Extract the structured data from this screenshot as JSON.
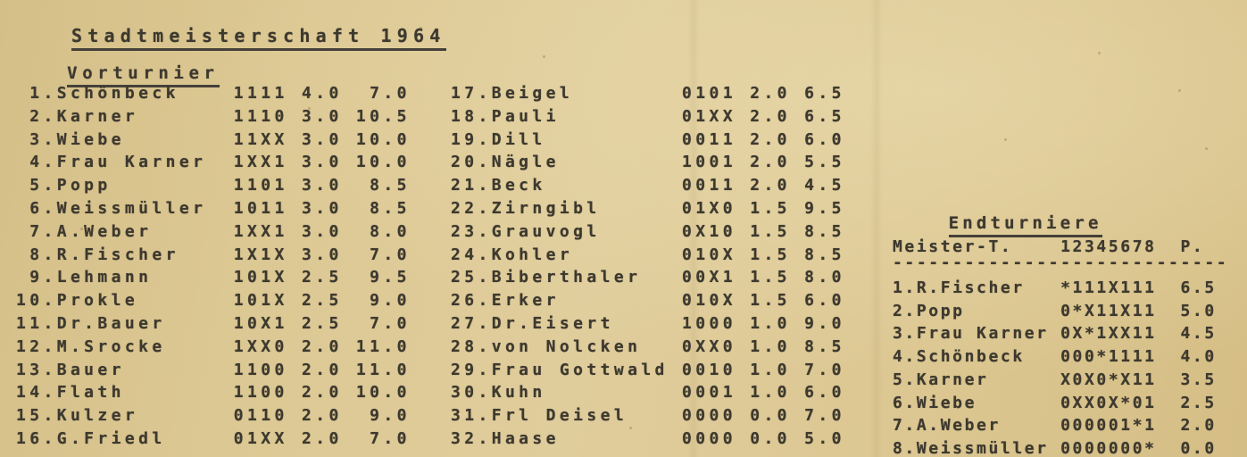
{
  "page": {
    "title": "Stadtmeisterschaft 1964",
    "section_vorturnier": "Vorturnier",
    "section_endturniere": "Endturniere"
  },
  "vorturnier": {
    "left_rows": [
      {
        "no": "1",
        "name": "Schönbeck",
        "result": "1111",
        "pts": "4.0",
        "sb": "7.0"
      },
      {
        "no": "2",
        "name": "Karner",
        "result": "1110",
        "pts": "3.0",
        "sb": "10.5"
      },
      {
        "no": "3",
        "name": "Wiebe",
        "result": "11XX",
        "pts": "3.0",
        "sb": "10.0"
      },
      {
        "no": "4",
        "name": "Frau Karner",
        "result": "1XX1",
        "pts": "3.0",
        "sb": "10.0"
      },
      {
        "no": "5",
        "name": "Popp",
        "result": "1101",
        "pts": "3.0",
        "sb": "8.5"
      },
      {
        "no": "6",
        "name": "Weissmüller",
        "result": "1011",
        "pts": "3.0",
        "sb": "8.5"
      },
      {
        "no": "7",
        "name": "A.Weber",
        "result": "1XX1",
        "pts": "3.0",
        "sb": "8.0"
      },
      {
        "no": "8",
        "name": "R.Fischer",
        "result": "1X1X",
        "pts": "3.0",
        "sb": "7.0"
      },
      {
        "no": "9",
        "name": "Lehmann",
        "result": "101X",
        "pts": "2.5",
        "sb": "9.5"
      },
      {
        "no": "10",
        "name": "Prokle",
        "result": "101X",
        "pts": "2.5",
        "sb": "9.0"
      },
      {
        "no": "11",
        "name": "Dr.Bauer",
        "result": "10X1",
        "pts": "2.5",
        "sb": "7.0"
      },
      {
        "no": "12",
        "name": "M.Srocke",
        "result": "1XX0",
        "pts": "2.0",
        "sb": "11.0"
      },
      {
        "no": "13",
        "name": "Bauer",
        "result": "1100",
        "pts": "2.0",
        "sb": "11.0"
      },
      {
        "no": "14",
        "name": "Flath",
        "result": "1100",
        "pts": "2.0",
        "sb": "10.0"
      },
      {
        "no": "15",
        "name": "Kulzer",
        "result": "0110",
        "pts": "2.0",
        "sb": "9.0"
      },
      {
        "no": "16",
        "name": "G.Friedl",
        "result": "01XX",
        "pts": "2.0",
        "sb": "7.0"
      }
    ],
    "right_rows": [
      {
        "no": "17",
        "name": "Beigel",
        "result": "0101",
        "pts": "2.0",
        "sb": "6.5"
      },
      {
        "no": "18",
        "name": "Pauli",
        "result": "01XX",
        "pts": "2.0",
        "sb": "6.5"
      },
      {
        "no": "19",
        "name": "Dill",
        "result": "0011",
        "pts": "2.0",
        "sb": "6.0"
      },
      {
        "no": "20",
        "name": "Nägle",
        "result": "1001",
        "pts": "2.0",
        "sb": "5.5"
      },
      {
        "no": "21",
        "name": "Beck",
        "result": "0011",
        "pts": "2.0",
        "sb": "4.5"
      },
      {
        "no": "22",
        "name": "Zirngibl",
        "result": "01X0",
        "pts": "1.5",
        "sb": "9.5"
      },
      {
        "no": "23",
        "name": "Grauvogl",
        "result": "0X10",
        "pts": "1.5",
        "sb": "8.5"
      },
      {
        "no": "24",
        "name": "Kohler",
        "result": "010X",
        "pts": "1.5",
        "sb": "8.5"
      },
      {
        "no": "25",
        "name": "Biberthaler",
        "result": "00X1",
        "pts": "1.5",
        "sb": "8.0"
      },
      {
        "no": "26",
        "name": "Erker",
        "result": "010X",
        "pts": "1.5",
        "sb": "6.0"
      },
      {
        "no": "27",
        "name": "Dr.Eisert",
        "result": "1000",
        "pts": "1.0",
        "sb": "9.0"
      },
      {
        "no": "28",
        "name": "von Nolcken",
        "result": "0XX0",
        "pts": "1.0",
        "sb": "8.5"
      },
      {
        "no": "29",
        "name": "Frau Gottwald",
        "result": "0010",
        "pts": "1.0",
        "sb": "7.0"
      },
      {
        "no": "30",
        "name": "Kuhn",
        "result": "0001",
        "pts": "1.0",
        "sb": "6.0"
      },
      {
        "no": "31",
        "name": "Frl Deisel",
        "result": "0000",
        "pts": "0.0",
        "sb": "7.0"
      },
      {
        "no": "32",
        "name": "Haase",
        "result": "0000",
        "pts": "0.0",
        "sb": "5.0"
      }
    ]
  },
  "endturnier": {
    "header": {
      "name_col": "Meister-T.",
      "rounds_col": "12345678",
      "points_col": "P."
    },
    "separator": "----------------------------",
    "rows": [
      {
        "no": "1",
        "name": "R.Fischer",
        "result": "*111X111",
        "pts": "6.5"
      },
      {
        "no": "2",
        "name": "Popp",
        "result": "0*X11X11",
        "pts": "5.0"
      },
      {
        "no": "3",
        "name": "Frau Karner",
        "result": "0X*1XX11",
        "pts": "4.5"
      },
      {
        "no": "4",
        "name": "Schönbeck",
        "result": "000*1111",
        "pts": "4.0"
      },
      {
        "no": "5",
        "name": "Karner",
        "result": "X0X0*X11",
        "pts": "3.5"
      },
      {
        "no": "6",
        "name": "Wiebe",
        "result": "0XX0X*01",
        "pts": "2.5"
      },
      {
        "no": "7",
        "name": "A.Weber",
        "result": "000001*1",
        "pts": "2.0"
      },
      {
        "no": "8",
        "name": "Weissmüller",
        "result": "0000000*",
        "pts": "0.0"
      }
    ]
  },
  "colors": {
    "paper": "#dcc893",
    "ink": "#3d392f"
  }
}
